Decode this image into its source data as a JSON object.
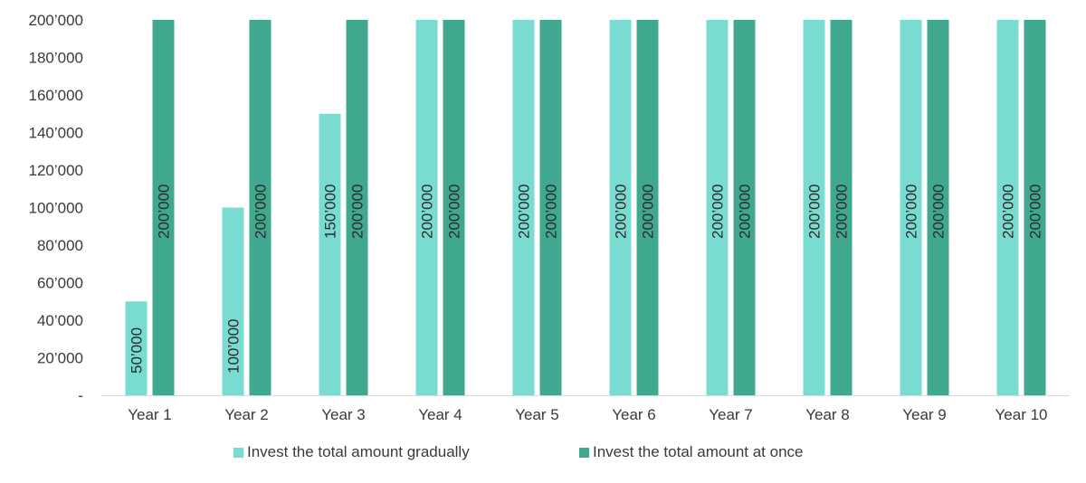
{
  "chart_data": {
    "type": "bar",
    "categories": [
      "Year 1",
      "Year 2",
      "Year 3",
      "Year 4",
      "Year 5",
      "Year 6",
      "Year 7",
      "Year 8",
      "Year 9",
      "Year 10"
    ],
    "series": [
      {
        "name": "Invest the total amount gradually",
        "color": "#7adcd0",
        "values": [
          50000,
          100000,
          150000,
          200000,
          200000,
          200000,
          200000,
          200000,
          200000,
          200000
        ],
        "labels": [
          "50’000",
          "100’000",
          "150’000",
          "200’000",
          "200’000",
          "200’000",
          "200’000",
          "200’000",
          "200’000",
          "200’000"
        ]
      },
      {
        "name": "Invest the total amount at once",
        "color": "#3fa88f",
        "values": [
          200000,
          200000,
          200000,
          200000,
          200000,
          200000,
          200000,
          200000,
          200000,
          200000
        ],
        "labels": [
          "200’000",
          "200’000",
          "200’000",
          "200’000",
          "200’000",
          "200’000",
          "200’000",
          "200’000",
          "200’000",
          "200’000"
        ]
      }
    ],
    "ylim": [
      0,
      200000
    ],
    "yticks": [
      0,
      20000,
      40000,
      60000,
      80000,
      100000,
      120000,
      140000,
      160000,
      180000,
      200000
    ],
    "ytick_labels": [
      "-",
      "20’000",
      "40’000",
      "60’000",
      "80’000",
      "100’000",
      "120’000",
      "140’000",
      "160’000",
      "180’000",
      "200’000"
    ],
    "grid": false,
    "legend_position": "bottom",
    "data_label_orientation": "vertical",
    "axis_color": "#d9d9d9",
    "text_color": "#3a3a3a"
  }
}
